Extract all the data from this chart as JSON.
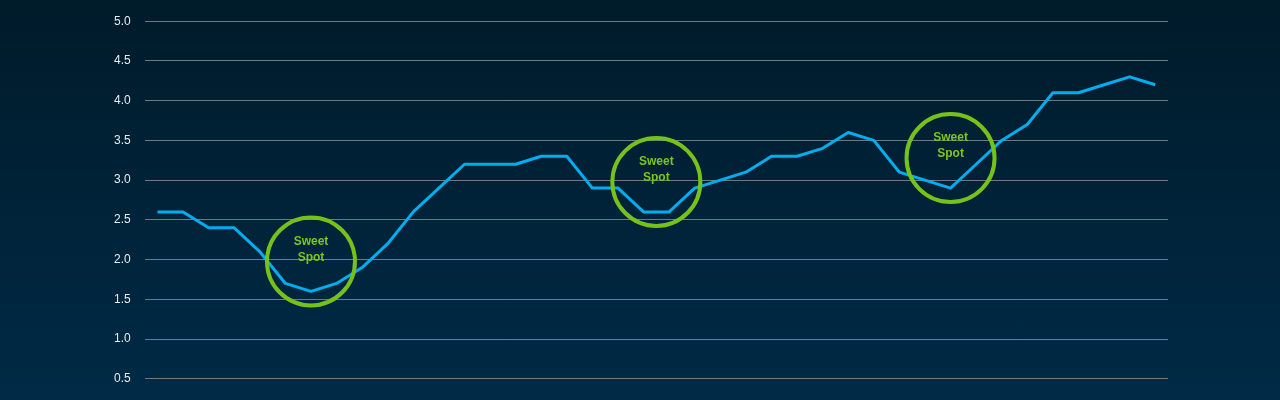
{
  "chart_data": {
    "type": "line",
    "categories": [
      null,
      null,
      null,
      null,
      null,
      null,
      null,
      null,
      null,
      null,
      null,
      null,
      null,
      null,
      null,
      null,
      null,
      null,
      null,
      null,
      null,
      null,
      null,
      null,
      null,
      null,
      null,
      null,
      null,
      null,
      null,
      null,
      null,
      null,
      null,
      null,
      null,
      null,
      null,
      null
    ],
    "series": [
      {
        "color": "#00aeef",
        "values": [
          2.6,
          2.6,
          2.4,
          2.4,
          2.1,
          1.7,
          1.6,
          1.7,
          1.9,
          2.2,
          2.6,
          2.9,
          3.2,
          3.2,
          3.2,
          3.3,
          3.3,
          2.9,
          2.9,
          2.6,
          2.6,
          2.9,
          3.0,
          3.1,
          3.3,
          3.3,
          3.4,
          3.6,
          3.5,
          3.1,
          3.0,
          2.9,
          3.2,
          3.5,
          3.7,
          4.1,
          4.1,
          4.2,
          4.3,
          4.2
        ]
      }
    ],
    "ylim": [
      0.5,
      5.0
    ],
    "yticks": [
      0.5,
      {
        "value": 1,
        "label": "1.0"
      },
      1.5,
      {
        "value": 2,
        "label": "2.0"
      },
      2.5,
      {
        "value": 3,
        "label": "3.0"
      },
      3.5,
      {
        "value": 4,
        "label": "4.0"
      },
      4.5,
      {
        "value": 5,
        "label": "5.0"
      }
    ],
    "tick_labels": "y",
    "grid": "y",
    "legend": false,
    "marker": "none",
    "line_style": "solid",
    "annotations": [
      "Sweet Spot",
      "Sweet Spot",
      "Sweet Spot"
    ]
  }
}
